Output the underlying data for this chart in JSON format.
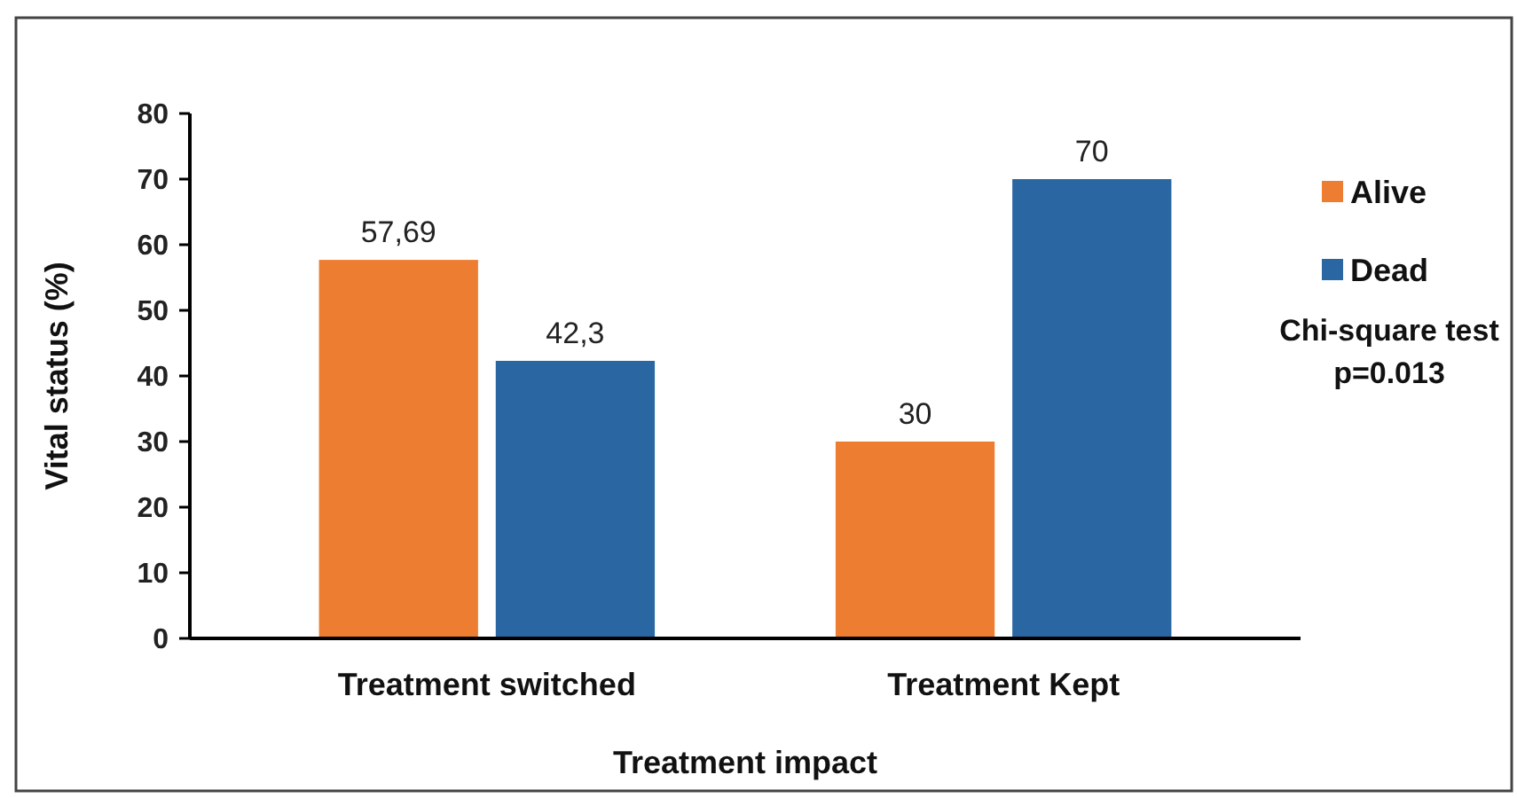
{
  "chart_data": {
    "type": "bar",
    "xlabel": "Treatment impact",
    "ylabel": "Vital status (%)",
    "categories": [
      "Treatment switched",
      "Treatment Kept"
    ],
    "series": [
      {
        "name": "Alive",
        "color": "#ed7d31",
        "values": [
          57.69,
          30
        ],
        "value_labels": [
          "57,69",
          "30"
        ]
      },
      {
        "name": "Dead",
        "color": "#2a67a2",
        "values": [
          42.3,
          70
        ],
        "value_labels": [
          "42,3",
          "70"
        ]
      }
    ],
    "ylim": [
      0,
      80
    ],
    "yticks": [
      0,
      10,
      20,
      30,
      40,
      50,
      60,
      70,
      80
    ],
    "legend": "right",
    "grid": false,
    "annotations": [
      "Chi-square test\np=0.013"
    ]
  }
}
